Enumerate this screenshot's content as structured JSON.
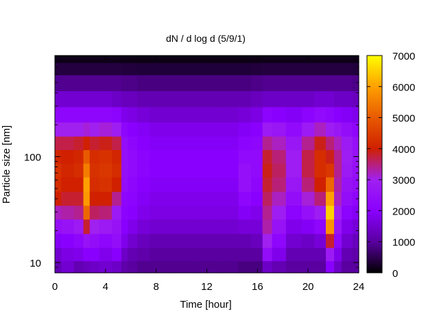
{
  "chart_data": {
    "type": "heatmap",
    "title": "dN / d log d (5/9/1)",
    "xlabel": "Time [hour]",
    "ylabel": "Particle size [nm]",
    "x_ticks": [
      0,
      4,
      8,
      12,
      16,
      20,
      24
    ],
    "xlim": [
      0,
      24
    ],
    "y_scale": "log",
    "y_tick_labels": [
      {
        "value": 10,
        "label": "10"
      },
      {
        "value": 100,
        "label": "100"
      }
    ],
    "ylim": [
      8,
      900
    ],
    "colorbar": {
      "range": [
        0,
        7000
      ],
      "ticks": [
        0,
        1000,
        2000,
        3000,
        4000,
        5000,
        6000,
        7000
      ],
      "palette": [
        "#000000",
        "#5a00a0",
        "#8a00ff",
        "#a020f0",
        "#d02000",
        "#e85a00",
        "#ffa000",
        "#ffff00"
      ]
    },
    "grid": false,
    "size_bins_nm": [
      9,
      12,
      16,
      22,
      30,
      40,
      55,
      75,
      100,
      135,
      180,
      250,
      350,
      500,
      700,
      850
    ],
    "time_hours": [
      0,
      1,
      2,
      2.5,
      3,
      4,
      5,
      5.5,
      6,
      7,
      8,
      10,
      12,
      14,
      15,
      16,
      16.8,
      17.5,
      19,
      20,
      21,
      21.8,
      22.3,
      23,
      24
    ],
    "values": [
      [
        1200,
        1500,
        1200,
        1300,
        1400,
        1500,
        1400,
        1100,
        1000,
        900,
        900,
        900,
        900,
        900,
        800,
        800,
        1400,
        1200,
        1000,
        1000,
        1000,
        2000,
        1400,
        1000,
        1000
      ],
      [
        1500,
        1700,
        1800,
        2000,
        2000,
        1800,
        2000,
        1400,
        1200,
        1100,
        1000,
        1000,
        1000,
        1000,
        1000,
        1000,
        2400,
        1800,
        1200,
        1200,
        1200,
        2800,
        1800,
        1200,
        1100
      ],
      [
        1900,
        2000,
        2200,
        2600,
        2400,
        2200,
        2400,
        1800,
        1500,
        1300,
        1200,
        1200,
        1200,
        1200,
        1200,
        1300,
        3000,
        2200,
        1500,
        1400,
        1600,
        3800,
        2200,
        1500,
        1300
      ],
      [
        2400,
        2600,
        2800,
        3800,
        3000,
        2800,
        2600,
        2000,
        1800,
        1600,
        1500,
        1500,
        1500,
        1500,
        1600,
        1600,
        3300,
        2600,
        1800,
        1900,
        2200,
        5800,
        2600,
        1800,
        1600
      ],
      [
        3200,
        3300,
        3400,
        5200,
        3600,
        3500,
        2800,
        2100,
        2000,
        1800,
        1700,
        1700,
        1700,
        1700,
        1900,
        1800,
        3400,
        2900,
        2100,
        2500,
        2900,
        6500,
        3000,
        2100,
        1900
      ],
      [
        4000,
        3800,
        3800,
        5900,
        4000,
        4000,
        3400,
        2200,
        2100,
        1900,
        1800,
        1800,
        1800,
        1800,
        2200,
        2000,
        3600,
        3200,
        2400,
        3100,
        3500,
        6000,
        3200,
        2400,
        2200
      ],
      [
        4200,
        4000,
        4000,
        6000,
        4200,
        4300,
        4000,
        2400,
        2200,
        2000,
        1900,
        1900,
        1900,
        1900,
        2500,
        2200,
        3800,
        3500,
        2700,
        3500,
        4000,
        5200,
        3300,
        2600,
        2400
      ],
      [
        4300,
        4100,
        4200,
        5500,
        4300,
        4400,
        4200,
        2500,
        2300,
        2100,
        2000,
        2000,
        2000,
        2000,
        2500,
        2300,
        3900,
        3600,
        2900,
        3700,
        4200,
        4400,
        3400,
        2800,
        2500
      ],
      [
        4100,
        4000,
        4100,
        5000,
        4200,
        4300,
        4100,
        2500,
        2300,
        2100,
        2000,
        2000,
        2000,
        2000,
        2300,
        2300,
        3800,
        3500,
        2900,
        3700,
        4200,
        3900,
        3400,
        2900,
        2600
      ],
      [
        3700,
        3700,
        3800,
        4000,
        3800,
        3900,
        3700,
        2400,
        2200,
        2000,
        1900,
        1900,
        1900,
        1900,
        2100,
        2200,
        3400,
        3200,
        2700,
        3400,
        3900,
        3500,
        3200,
        2800,
        2500
      ],
      [
        3000,
        3000,
        3000,
        3100,
        3000,
        3100,
        2900,
        2200,
        2000,
        1900,
        1800,
        1800,
        1800,
        1800,
        1900,
        2000,
        2800,
        2700,
        2300,
        2800,
        3200,
        2900,
        2700,
        2400,
        2200
      ],
      [
        2200,
        2200,
        2200,
        2200,
        2200,
        2200,
        2100,
        1800,
        1700,
        1600,
        1500,
        1500,
        1500,
        1500,
        1600,
        1700,
        2100,
        2000,
        1900,
        2100,
        2300,
        2200,
        2000,
        1900,
        1800
      ],
      [
        1500,
        1500,
        1500,
        1500,
        1500,
        1500,
        1400,
        1300,
        1300,
        1200,
        1200,
        1200,
        1200,
        1200,
        1200,
        1300,
        1400,
        1400,
        1400,
        1400,
        1500,
        1500,
        1400,
        1400,
        1300
      ],
      [
        900,
        900,
        900,
        900,
        900,
        900,
        900,
        850,
        850,
        800,
        800,
        800,
        800,
        800,
        800,
        850,
        900,
        900,
        900,
        900,
        900,
        900,
        900,
        900,
        850
      ],
      [
        400,
        400,
        400,
        400,
        400,
        400,
        400,
        380,
        380,
        360,
        360,
        360,
        360,
        360,
        360,
        380,
        400,
        400,
        400,
        400,
        400,
        400,
        400,
        400,
        380
      ],
      [
        150,
        150,
        150,
        150,
        150,
        150,
        150,
        140,
        140,
        130,
        130,
        130,
        130,
        130,
        130,
        140,
        150,
        150,
        150,
        150,
        150,
        150,
        150,
        150,
        140
      ]
    ]
  }
}
